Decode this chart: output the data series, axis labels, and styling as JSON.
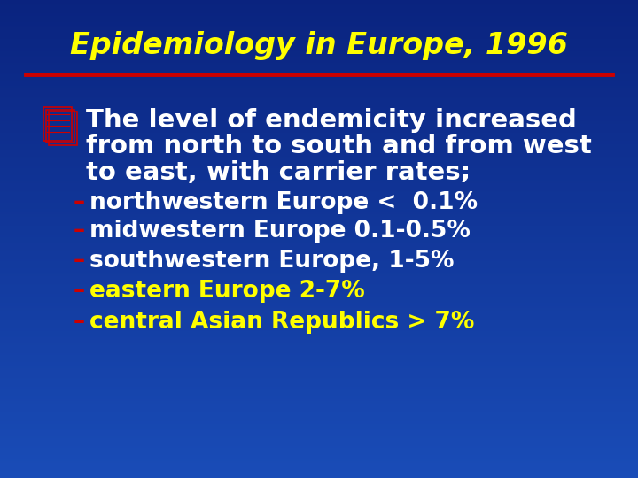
{
  "title": "Epidemiology in Europe, 1996",
  "title_color": "#FFFF00",
  "title_fontsize": 24,
  "bg_color": "#1A4CB0",
  "bg_top_color": "#0A2580",
  "separator_color": "#CC0000",
  "bullet_color": "#CC0000",
  "bullet_text_color": "#FFFFFF",
  "bullet_fontsize": 21,
  "bullet_main_line1": "The level of endemicity increased",
  "bullet_main_line2": "from north to south and from west",
  "bullet_main_line3": "to east, with carrier rates;",
  "sub_items": [
    "–northwestern Europe <  0.1%",
    "–midwestern Europe 0.1-0.5%",
    "–southwestern Europe, 1-5%",
    "–eastern Europe 2-7%",
    "–central Asian Republics > 7%"
  ],
  "sub_color_white": "#FFFFFF",
  "sub_color_yellow": "#FFFF00",
  "sub_fontsize": 19,
  "sub_items_yellow": [
    3,
    4
  ],
  "figwidth": 7.2,
  "figheight": 5.4,
  "dpi": 100
}
